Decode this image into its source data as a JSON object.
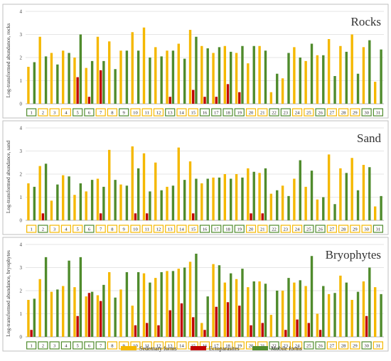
{
  "legend": [
    {
      "label": "Sedentary forms",
      "color": "#f5b800"
    },
    {
      "label": "Ectoparasites",
      "color": "#c00000"
    },
    {
      "label": "Mobile forms",
      "color": "#4f8b2c"
    }
  ],
  "chart_data": [
    {
      "type": "bar",
      "title": "Rocks",
      "ylabel": "Log-transformed abundance, rocks",
      "ylim": [
        0,
        4
      ],
      "yticks": [
        0,
        1,
        2,
        3,
        4
      ],
      "grid": true,
      "categories": [
        "1",
        "2",
        "3",
        "4",
        "5",
        "6",
        "7",
        "8",
        "9",
        "10",
        "11",
        "12",
        "13",
        "14",
        "15",
        "16",
        "17",
        "18",
        "19",
        "20",
        "21",
        "22",
        "23",
        "24",
        "25",
        "26",
        "27",
        "28",
        "29",
        "30",
        "31"
      ],
      "category_box_colors": [
        "#4f8b2c",
        "#f5b800",
        "#f5b800",
        "#f5b800",
        "#4f8b2c",
        "#4f8b2c",
        "#f5b800",
        "#f5b800",
        "#4f8b2c",
        "#f5b800",
        "#f5b800",
        "#f5b800",
        "#4f8b2c",
        "#f5b800",
        "#f5b800",
        "#4f8b2c",
        "#4f8b2c",
        "#4f8b2c",
        "#4f8b2c",
        "#f5b800",
        "#f5b800",
        "#4f8b2c",
        "#4f8b2c",
        "#f5b800",
        "#f5b800",
        "#4f8b2c",
        "#f5b800",
        "#f5b800",
        "#f5b800",
        "#4f8b2c",
        "#4f8b2c"
      ],
      "series": [
        {
          "name": "Sedentary forms",
          "values": [
            1.6,
            2.9,
            2.2,
            2.3,
            2.0,
            1.55,
            2.9,
            2.7,
            2.3,
            3.1,
            3.3,
            2.45,
            2.3,
            2.6,
            3.2,
            2.5,
            2.2,
            2.5,
            2.2,
            1.75,
            2.5,
            0.5,
            1.1,
            2.45,
            1.85,
            2.1,
            2.8,
            2.5,
            3.0,
            2.45,
            0.95
          ]
        },
        {
          "name": "Ectoparasites",
          "values": [
            0,
            0,
            0,
            0,
            1.15,
            0.3,
            1.45,
            0,
            0,
            0,
            0,
            0,
            0.3,
            0,
            0.6,
            0.3,
            0.3,
            0.85,
            0.5,
            0,
            0,
            0,
            0,
            0,
            0,
            0,
            0,
            0,
            0,
            0,
            0
          ]
        },
        {
          "name": "Mobile forms",
          "values": [
            1.8,
            2.05,
            1.7,
            2.2,
            3.0,
            1.85,
            1.85,
            1.5,
            2.3,
            2.3,
            2.0,
            2.05,
            2.3,
            1.95,
            2.9,
            2.4,
            2.45,
            2.25,
            2.5,
            2.5,
            2.3,
            1.3,
            2.2,
            2.0,
            2.6,
            2.1,
            1.2,
            2.25,
            1.3,
            2.75,
            2.35
          ]
        }
      ]
    },
    {
      "type": "bar",
      "title": "Sand",
      "ylabel": "Log-transformed abundance, sand",
      "ylim": [
        0,
        4
      ],
      "yticks": [
        0,
        1,
        2,
        3,
        4
      ],
      "grid": true,
      "categories": [
        "1",
        "2",
        "3",
        "4",
        "5",
        "6",
        "7",
        "8",
        "9",
        "10",
        "11",
        "12",
        "13",
        "14",
        "15",
        "16",
        "17",
        "18",
        "19",
        "20",
        "21",
        "22",
        "23",
        "24",
        "25",
        "26",
        "27",
        "28",
        "29",
        "30",
        "31"
      ],
      "category_box_colors": [
        "#f5b800",
        "#4f8b2c",
        "#f5b800",
        "#f5b800",
        "#f5b800",
        "#4f8b2c",
        "#f5b800",
        "#f5b800",
        "#f5b800",
        "#f5b800",
        "#f5b800",
        "#f5b800",
        "#f5b800",
        "#f5b800",
        "#f5b800",
        "#4f8b2c",
        "#4f8b2c",
        "#4f8b2c",
        "#4f8b2c",
        "#f5b800",
        "#f5b800",
        "#4f8b2c",
        "#f5b800",
        "#f5b800",
        "#4f8b2c",
        "#4f8b2c",
        "#f5b800",
        "#f5b800",
        "#f5b800",
        "#f5b800",
        "#4f8b2c"
      ],
      "series": [
        {
          "name": "Sedentary forms",
          "values": [
            1.6,
            2.35,
            0.85,
            1.95,
            1.1,
            1.25,
            1.8,
            3.05,
            1.55,
            3.2,
            2.9,
            2.5,
            1.45,
            3.15,
            2.55,
            1.6,
            1.85,
            2.0,
            2.0,
            2.25,
            2.05,
            1.15,
            1.5,
            1.8,
            1.45,
            0.9,
            2.85,
            2.25,
            2.7,
            2.4,
            0.6
          ]
        },
        {
          "name": "Ectoparasites",
          "values": [
            0,
            0.3,
            0,
            0,
            0,
            0,
            0.3,
            0,
            0,
            0.3,
            0.3,
            0,
            0,
            0,
            0.3,
            0,
            0,
            0,
            0,
            0.3,
            0.3,
            0,
            0,
            0,
            0,
            0,
            0,
            0,
            0,
            0,
            0
          ]
        },
        {
          "name": "Mobile forms",
          "values": [
            1.45,
            2.45,
            1.55,
            1.9,
            1.6,
            1.75,
            1.45,
            1.75,
            1.5,
            2.25,
            1.25,
            1.3,
            1.5,
            1.75,
            1.8,
            1.8,
            1.85,
            1.8,
            1.85,
            2.1,
            2.25,
            1.3,
            1.05,
            2.6,
            2.15,
            1.0,
            0.7,
            2.05,
            1.3,
            2.3,
            1.05
          ]
        }
      ]
    },
    {
      "type": "bar",
      "title": "Bryophytes",
      "ylabel": "Log-transformed abundance, bryophytes",
      "ylim": [
        0,
        4
      ],
      "yticks": [
        0,
        1,
        2,
        3,
        4
      ],
      "grid": true,
      "categories": [
        "1",
        "2",
        "3",
        "4",
        "5",
        "6",
        "7",
        "8",
        "9",
        "10",
        "11",
        "12",
        "13",
        "14",
        "15",
        "16",
        "17",
        "18",
        "19",
        "20",
        "21",
        "22",
        "23",
        "24",
        "25",
        "26",
        "27",
        "28",
        "29",
        "30",
        "31"
      ],
      "category_box_colors": [
        "#4f8b2c",
        "#4f8b2c",
        "#4f8b2c",
        "#4f8b2c",
        "#4f8b2c",
        "#4f8b2c",
        "#4f8b2c",
        "#f5b800",
        "#f5b800",
        "#f5b800",
        "#f5b800",
        "#f5b800",
        "#f5b800",
        "#f5b800",
        "#f5b800",
        "#f5b800",
        "#f5b800",
        "#f5b800",
        "#f5b800",
        "#f5b800",
        "#f5b800",
        "#4f8b2c",
        "#f5b800",
        "#f5b800",
        "#4f8b2c",
        "#4f8b2c",
        "#f5b800",
        "#f5b800",
        "#f5b800",
        "#4f8b2c",
        "#f5b800"
      ],
      "series": [
        {
          "name": "Sedentary forms",
          "values": [
            1.6,
            2.5,
            1.95,
            2.2,
            2.15,
            1.75,
            1.8,
            2.8,
            2.05,
            1.35,
            2.75,
            2.55,
            2.85,
            2.95,
            3.25,
            0.6,
            3.15,
            2.35,
            2.5,
            2.15,
            2.4,
            0.95,
            2.0,
            2.35,
            2.2,
            1.0,
            1.85,
            2.65,
            1.6,
            2.4,
            2.15
          ]
        },
        {
          "name": "Ectoparasites",
          "values": [
            0.3,
            0,
            0,
            0,
            0.9,
            1.9,
            1.55,
            0,
            0,
            0.5,
            0.6,
            0.5,
            1.15,
            1.45,
            0.85,
            0.3,
            1.3,
            1.5,
            1.35,
            0.5,
            0.6,
            0,
            0.3,
            0.75,
            0.6,
            0.3,
            0,
            0,
            0,
            0.9,
            0
          ]
        },
        {
          "name": "Mobile forms",
          "values": [
            1.65,
            3.45,
            2.05,
            3.3,
            3.45,
            1.95,
            2.25,
            1.7,
            2.8,
            2.8,
            2.35,
            2.8,
            2.85,
            3.0,
            3.6,
            1.75,
            3.1,
            2.75,
            2.95,
            2.4,
            2.3,
            2.0,
            2.55,
            2.45,
            3.5,
            2.2,
            1.9,
            2.35,
            1.95,
            3.0,
            1.85
          ]
        }
      ]
    }
  ]
}
